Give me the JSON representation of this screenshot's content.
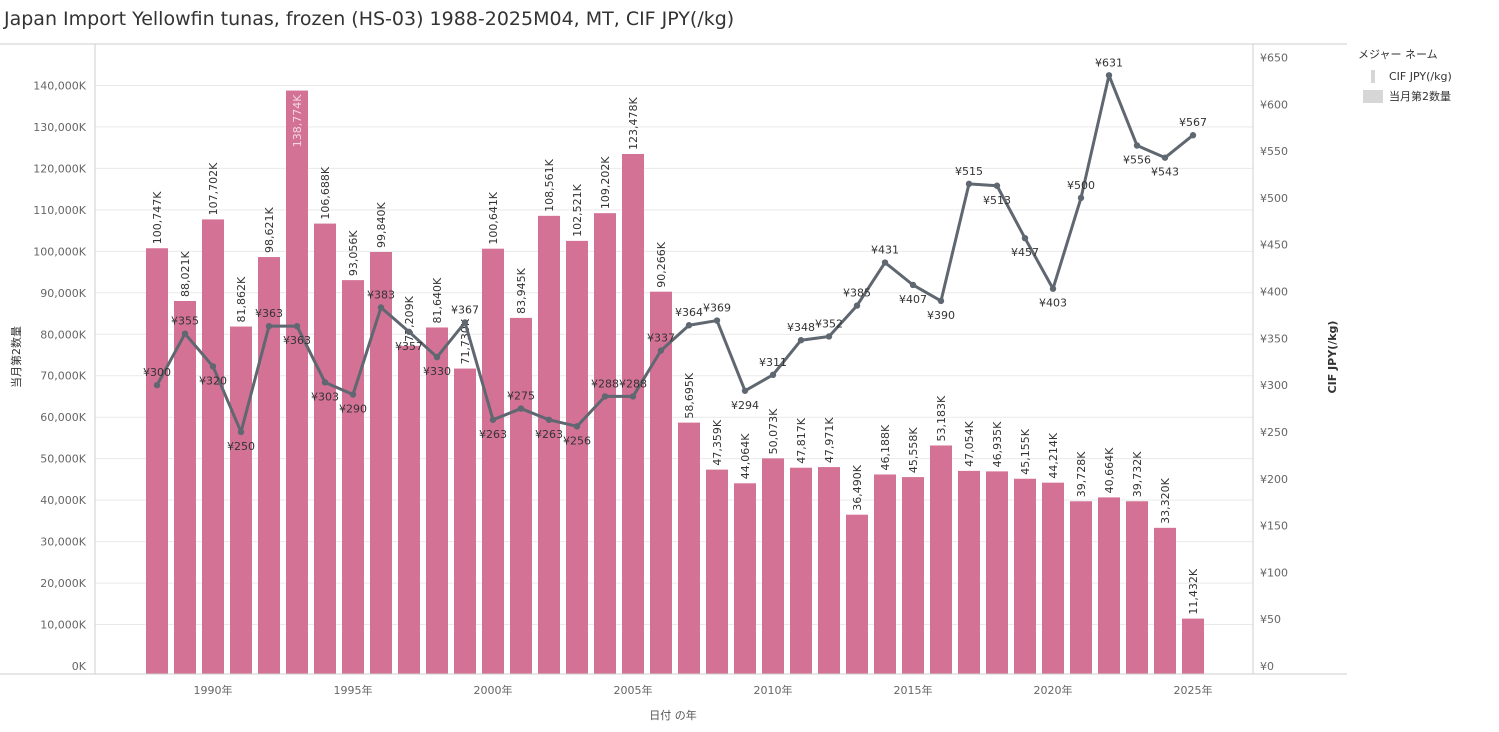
{
  "title": "Japan Import Yellowfin tunas, frozen (HS-03) 1988-2025M04, MT, CIF JPY(/kg)",
  "legend": {
    "header": "メジャー ネーム",
    "line_label": "CIF JPY(/kg)",
    "bar_label": "当月第2数量"
  },
  "colors": {
    "bar": "#d37295",
    "line": "#5f6770",
    "bar_label_inside": "#f2d7e1",
    "grid": "#e9e9e9"
  },
  "chart_data": {
    "type": "bar+line",
    "x": [
      1988,
      1989,
      1990,
      1991,
      1992,
      1993,
      1994,
      1995,
      1996,
      1997,
      1998,
      1999,
      2000,
      2001,
      2002,
      2003,
      2004,
      2005,
      2006,
      2007,
      2008,
      2009,
      2010,
      2011,
      2012,
      2013,
      2014,
      2015,
      2016,
      2017,
      2018,
      2019,
      2020,
      2021,
      2022,
      2023,
      2024,
      2025
    ],
    "xlabel": "日付 の年",
    "x_tick_labels": [
      {
        "year": 1990,
        "label": "1990年"
      },
      {
        "year": 1995,
        "label": "1995年"
      },
      {
        "year": 2000,
        "label": "2000年"
      },
      {
        "year": 2005,
        "label": "2005年"
      },
      {
        "year": 2010,
        "label": "2010年"
      },
      {
        "year": 2015,
        "label": "2015年"
      },
      {
        "year": 2020,
        "label": "2020年"
      },
      {
        "year": 2025,
        "label": "2025年"
      }
    ],
    "series": [
      {
        "name": "当月第2数量",
        "type": "bar",
        "axis": "left",
        "values": [
          100747,
          88021,
          107702,
          81862,
          98621,
          138774,
          106688,
          93056,
          99840,
          77209,
          81640,
          71730,
          100641,
          83945,
          108561,
          102521,
          109202,
          123478,
          90266,
          58695,
          47359,
          44064,
          50073,
          47817,
          47971,
          36490,
          46188,
          45558,
          53183,
          47054,
          46935,
          45155,
          44214,
          39728,
          40664,
          39732,
          33320,
          11432
        ],
        "labels": [
          "100,747K",
          "88,021K",
          "107,702K",
          "81,862K",
          "98,621K",
          "138,774K",
          "106,688K",
          "93,056K",
          "99,840K",
          "77,209K",
          "81,640K",
          "71,730K",
          "100,641K",
          "83,945K",
          "108,561K",
          "102,521K",
          "109,202K",
          "123,478K",
          "90,266K",
          "58,695K",
          "47,359K",
          "44,064K",
          "50,073K",
          "47,817K",
          "47,971K",
          "36,490K",
          "46,188K",
          "45,558K",
          "53,183K",
          "47,054K",
          "46,935K",
          "45,155K",
          "44,214K",
          "39,728K",
          "40,664K",
          "39,732K",
          "33,320K",
          "11,432K"
        ]
      },
      {
        "name": "CIF JPY(/kg)",
        "type": "line",
        "axis": "right",
        "values": [
          300,
          355,
          320,
          250,
          363,
          363,
          303,
          290,
          383,
          357,
          330,
          367,
          263,
          275,
          263,
          256,
          288,
          288,
          337,
          364,
          369,
          294,
          311,
          348,
          352,
          385,
          431,
          407,
          390,
          515,
          513,
          457,
          403,
          500,
          631,
          556,
          543,
          567
        ],
        "labels": [
          "¥300",
          "¥355",
          "¥320",
          "¥250",
          "¥363",
          "¥363",
          "¥303",
          "¥290",
          "¥383",
          "¥357",
          "¥330",
          "¥367",
          "¥263",
          "¥275",
          "¥263",
          "¥256",
          "¥288",
          "¥288",
          "¥337",
          "¥364",
          "¥369",
          "¥294",
          "¥311",
          "¥348",
          "¥352",
          "¥385",
          "¥431",
          "¥407",
          "¥390",
          "¥515",
          "¥513",
          "¥457",
          "¥403",
          "¥500",
          "¥631",
          "¥556",
          "¥543",
          "¥567"
        ]
      }
    ],
    "y_left": {
      "label": "当月第2数量",
      "range": [
        0,
        150000
      ],
      "ticks": [
        0,
        10000,
        20000,
        30000,
        40000,
        50000,
        60000,
        70000,
        80000,
        90000,
        100000,
        110000,
        120000,
        130000,
        140000
      ],
      "tick_labels": [
        "0K",
        "10,000K",
        "20,000K",
        "30,000K",
        "40,000K",
        "50,000K",
        "60,000K",
        "70,000K",
        "80,000K",
        "90,000K",
        "100,000K",
        "110,000K",
        "120,000K",
        "130,000K",
        "140,000K"
      ]
    },
    "y_right": {
      "label": "CIF JPY(/kg)",
      "range": [
        0,
        650
      ],
      "ticks": [
        0,
        50,
        100,
        150,
        200,
        250,
        300,
        350,
        400,
        450,
        500,
        550,
        600,
        650
      ],
      "tick_labels": [
        "¥0",
        "¥50",
        "¥100",
        "¥150",
        "¥200",
        "¥250",
        "¥300",
        "¥350",
        "¥400",
        "¥450",
        "¥500",
        "¥550",
        "¥600",
        "¥650"
      ]
    },
    "grid": true,
    "legend_position": "right"
  }
}
